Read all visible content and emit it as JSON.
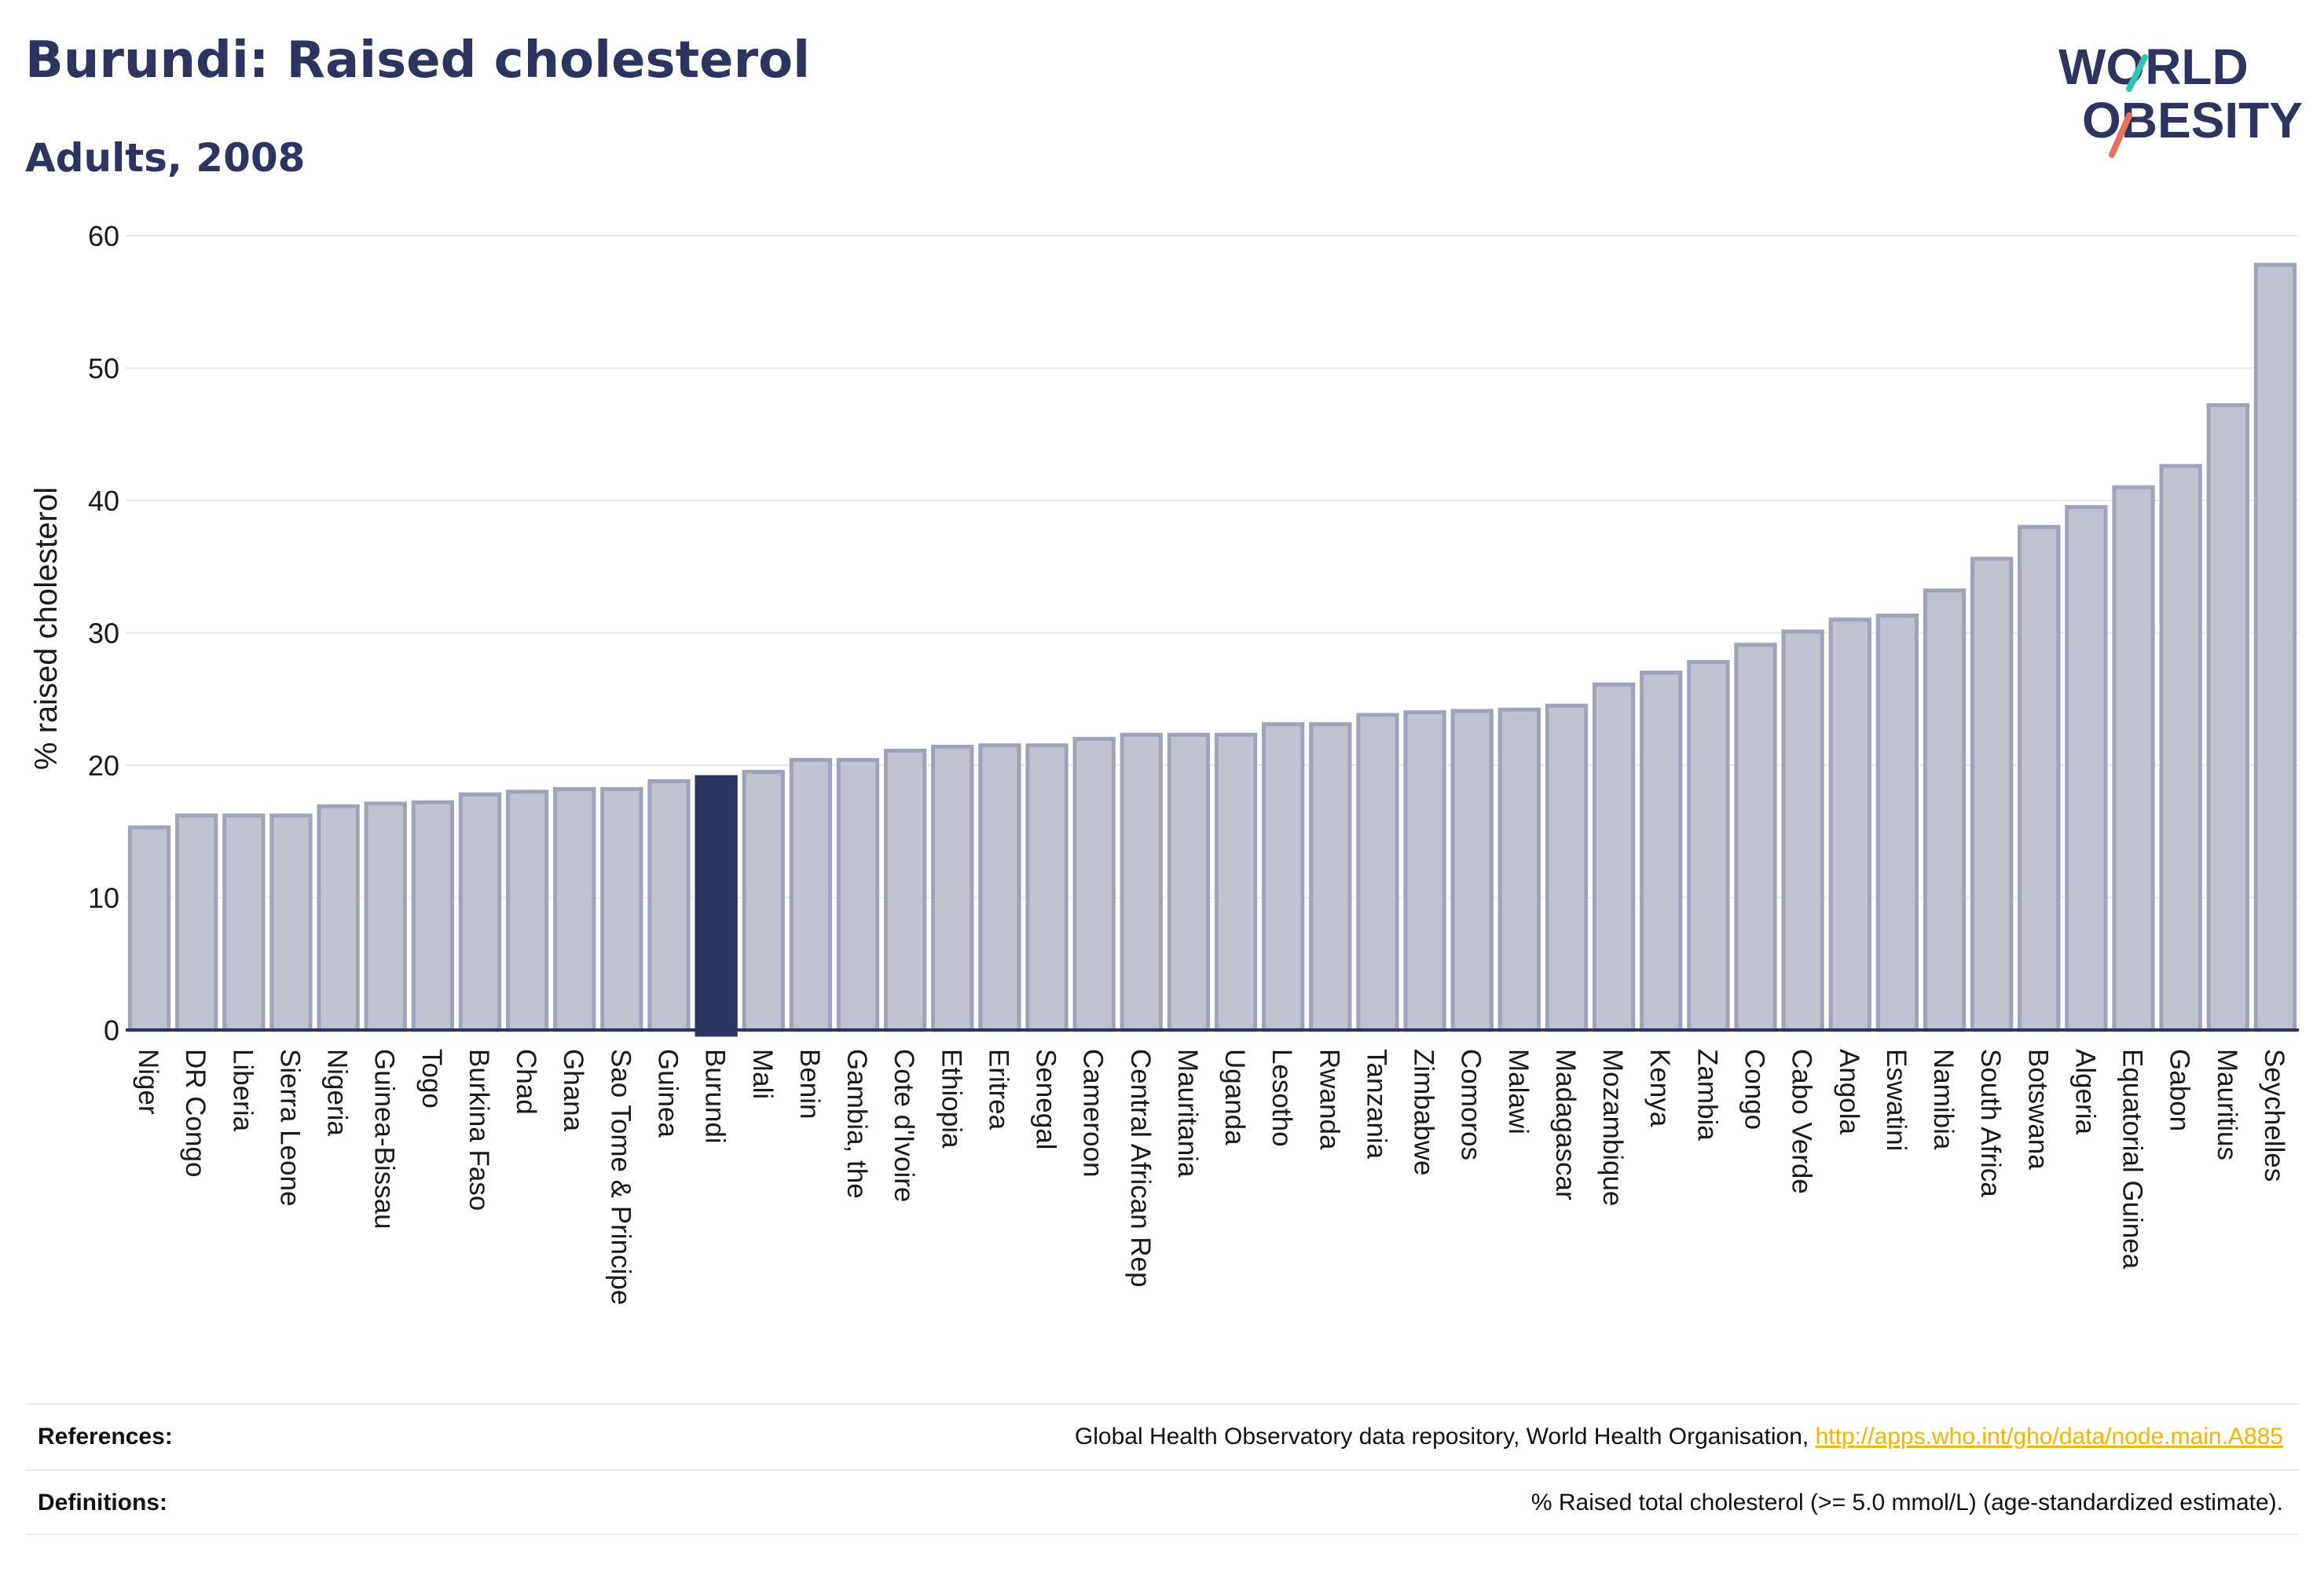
{
  "header": {
    "title": "Burundi: Raised cholesterol",
    "subtitle": "Adults, 2008"
  },
  "logo": {
    "line1": "WORLD",
    "line2": "OBESITY",
    "colors": {
      "text": "#2b3560",
      "slash_top": "#2ec4b6",
      "slash_bottom": "#e8705f"
    }
  },
  "colors": {
    "bar": "#bfc3d0",
    "bar_stroke": "#9ea3ba",
    "highlight": "#2b3560",
    "grid": "#e6e8ee",
    "axis": "#2b3560"
  },
  "chart_data": {
    "type": "bar",
    "title": "",
    "xlabel": "",
    "ylabel": "% raised cholesterol",
    "ylim": [
      0,
      60
    ],
    "yticks": [
      0,
      10,
      20,
      30,
      40,
      50,
      60
    ],
    "grid": true,
    "highlight": "Burundi",
    "categories": [
      "Niger",
      "DR Congo",
      "Liberia",
      "Sierra Leone",
      "Nigeria",
      "Guinea-Bissau",
      "Togo",
      "Burkina Faso",
      "Chad",
      "Ghana",
      "Sao Tome & Principe",
      "Guinea",
      "Burundi",
      "Mali",
      "Benin",
      "Gambia, the",
      "Cote d'Ivoire",
      "Ethiopia",
      "Eritrea",
      "Senegal",
      "Cameroon",
      "Central African Rep",
      "Mauritania",
      "Uganda",
      "Lesotho",
      "Rwanda",
      "Tanzania",
      "Zimbabwe",
      "Comoros",
      "Malawi",
      "Madagascar",
      "Mozambique",
      "Kenya",
      "Zambia",
      "Congo",
      "Cabo Verde",
      "Angola",
      "Eswatini",
      "Namibia",
      "South Africa",
      "Botswana",
      "Algeria",
      "Equatorial Guinea",
      "Gabon",
      "Mauritius",
      "Seychelles"
    ],
    "values": [
      15.3,
      16.2,
      16.2,
      16.2,
      16.9,
      17.1,
      17.2,
      17.8,
      18.0,
      18.2,
      18.2,
      18.8,
      19.1,
      19.5,
      20.4,
      20.4,
      21.1,
      21.4,
      21.5,
      21.5,
      22.0,
      22.3,
      22.3,
      22.3,
      23.1,
      23.1,
      23.8,
      24.0,
      24.1,
      24.2,
      24.5,
      26.1,
      27.0,
      27.8,
      29.1,
      30.1,
      31.0,
      31.3,
      33.2,
      35.6,
      38.0,
      39.5,
      41.0,
      42.6,
      47.2,
      57.8
    ]
  },
  "footer": {
    "references_label": "References:",
    "references_text": "Global Health Observatory data repository, World Health Organisation, ",
    "references_link": "http://apps.who.int/gho/data/node.main.A885",
    "definitions_label": "Definitions:",
    "definitions_text": "% Raised total cholesterol (>= 5.0 mmol/L) (age-standardized estimate)."
  }
}
